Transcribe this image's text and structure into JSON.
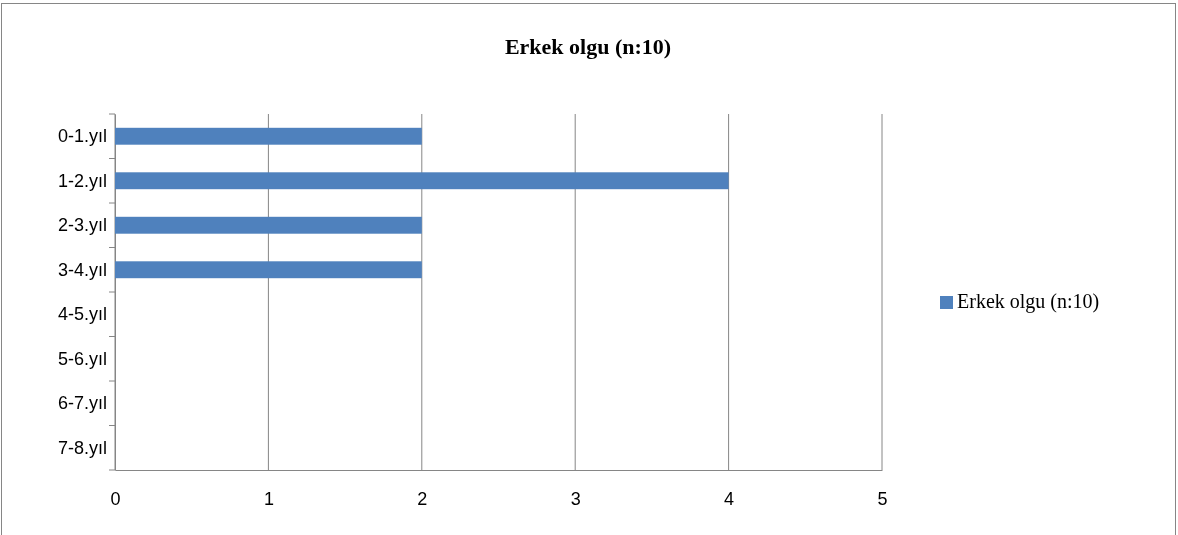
{
  "chart_data": {
    "type": "bar",
    "orientation": "horizontal",
    "title": "Erkek olgu (n:10)",
    "categories": [
      "0-1.yıl",
      "1-2.yıl",
      "2-3.yıl",
      "3-4.yıl",
      "4-5.yıl",
      "5-6.yıl",
      "6-7.yıl",
      "7-8.yıl"
    ],
    "series": [
      {
        "name": "Erkek olgu (n:10)",
        "color": "#4f81bd",
        "values": [
          2,
          4,
          2,
          2,
          0,
          0,
          0,
          0
        ]
      }
    ],
    "xlim": [
      0,
      5
    ],
    "xticks": [
      0,
      1,
      2,
      3,
      4,
      5
    ],
    "grid": "x",
    "legend": "right"
  }
}
